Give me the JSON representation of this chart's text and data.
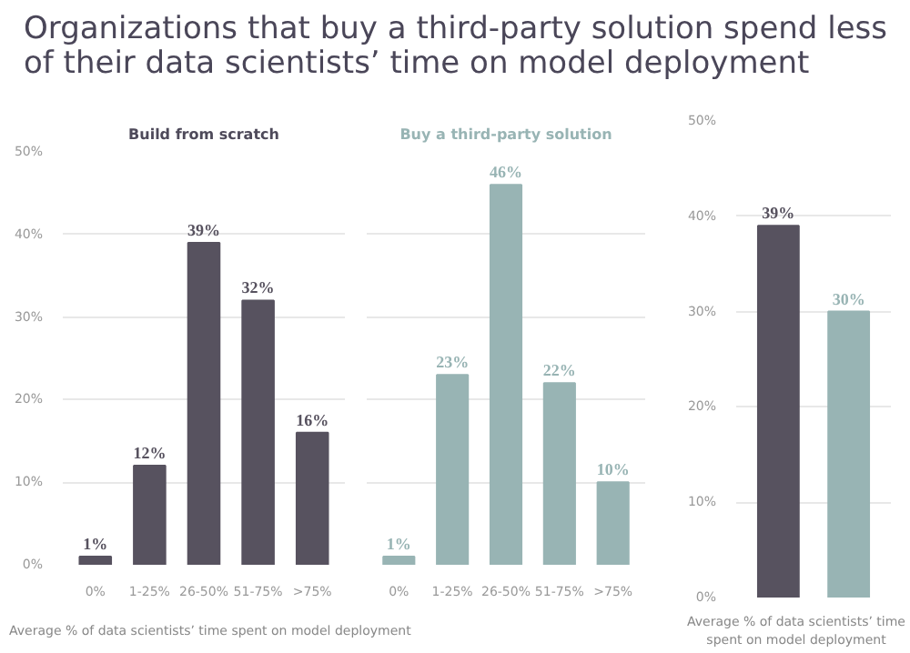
{
  "chart_data": [
    {
      "type": "other",
      "title": "Organizations that buy a third-party solution spend less of their data scientists’ time on model deployment"
    },
    {
      "type": "bar",
      "title": "Build from scratch",
      "xlabel": "Average % of data scientists’ time spent on model deployment",
      "categories": [
        "0%",
        "1-25%",
        "26-50%",
        "51-75%",
        ">75%"
      ],
      "values": [
        1,
        12,
        39,
        32,
        16
      ],
      "color": "#57525f",
      "value_labels": [
        "1%",
        "12%",
        "39%",
        "32%",
        "16%"
      ],
      "ylim": [
        0,
        50
      ],
      "yticks": [
        {
          "value": 0,
          "label": "0%"
        },
        {
          "value": 10,
          "label": "10%"
        },
        {
          "value": 20,
          "label": "20%"
        },
        {
          "value": 30,
          "label": "30%"
        },
        {
          "value": 40,
          "label": "40%"
        },
        {
          "value": 50,
          "label": "50%"
        }
      ],
      "grid": "y"
    },
    {
      "type": "bar",
      "title": "Buy a third-party solution",
      "categories": [
        "0%",
        "1-25%",
        "26-50%",
        "51-75%",
        ">75%"
      ],
      "values": [
        1,
        23,
        46,
        22,
        10
      ],
      "color": "#98b4b4",
      "value_labels": [
        "1%",
        "23%",
        "46%",
        "22%",
        "10%"
      ],
      "ylim": [
        0,
        50
      ],
      "yticks": [
        0,
        10,
        20,
        30,
        40,
        50
      ],
      "tick_labels": "x",
      "grid": "y"
    },
    {
      "type": "bar",
      "xlabel": "Average % of data scientists’ time spent on model deployment",
      "categories": [
        null,
        null
      ],
      "values": [
        39,
        30
      ],
      "colors": [
        "#57525f",
        "#98b4b4"
      ],
      "value_labels": [
        "39%",
        "30%"
      ],
      "ylim": [
        0,
        50
      ],
      "yticks": [
        {
          "value": 0,
          "label": "0%"
        },
        {
          "value": 10,
          "label": "10%"
        },
        {
          "value": 20,
          "label": "20%"
        },
        {
          "value": 30,
          "label": "30%"
        },
        {
          "value": 40,
          "label": "40%"
        },
        {
          "value": 50,
          "label": "50%"
        }
      ],
      "grid": "y"
    }
  ]
}
